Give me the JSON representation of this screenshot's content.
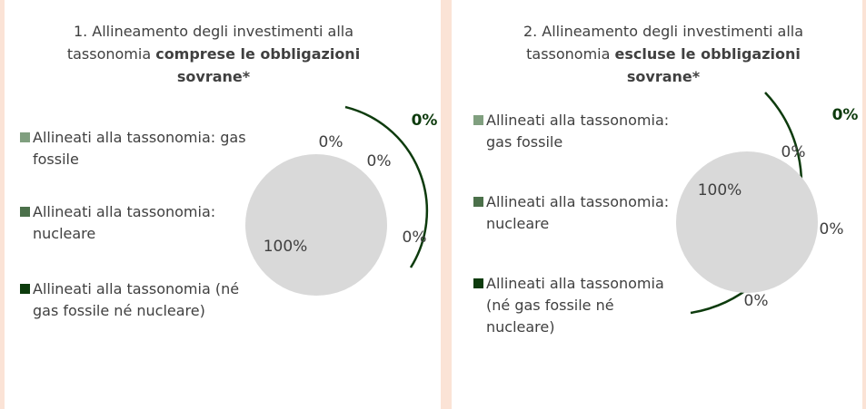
{
  "chart_data": [
    {
      "type": "pie",
      "title": "1. Allineamento degli investimenti alla tassonomia ",
      "title_bold": "comprese le obbligazioni sovrane*",
      "annotation": "0%",
      "categories": [
        "Allineati alla tassonomia: gas fossile",
        "Allineati alla tassonomia: nucleare",
        "Allineati alla tassonomia (né gas fossile né nucleare)",
        null
      ],
      "values": [
        0,
        0,
        0,
        100
      ],
      "value_labels": [
        "0%",
        "0%",
        "0%",
        "100%"
      ],
      "colors": [
        "#809f7f",
        "#4b704a",
        "#0d3b0d",
        "#d9d9d9"
      ]
    },
    {
      "type": "pie",
      "title": "2. Allineamento degli investimenti alla tassonomia ",
      "title_bold": "escluse le obbligazioni sovrane*",
      "annotation": "0%",
      "categories": [
        "Allineati alla tassonomia: gas fossile",
        "Allineati alla tassonomia: nucleare",
        "Allineati alla tassonomia (né gas fossile né nucleare)",
        null
      ],
      "values": [
        0,
        0,
        0,
        100
      ],
      "value_labels": [
        "0%",
        "0%",
        "0%",
        "100%"
      ],
      "colors": [
        "#809f7f",
        "#4b704a",
        "#0d3b0d",
        "#d9d9d9"
      ]
    }
  ]
}
